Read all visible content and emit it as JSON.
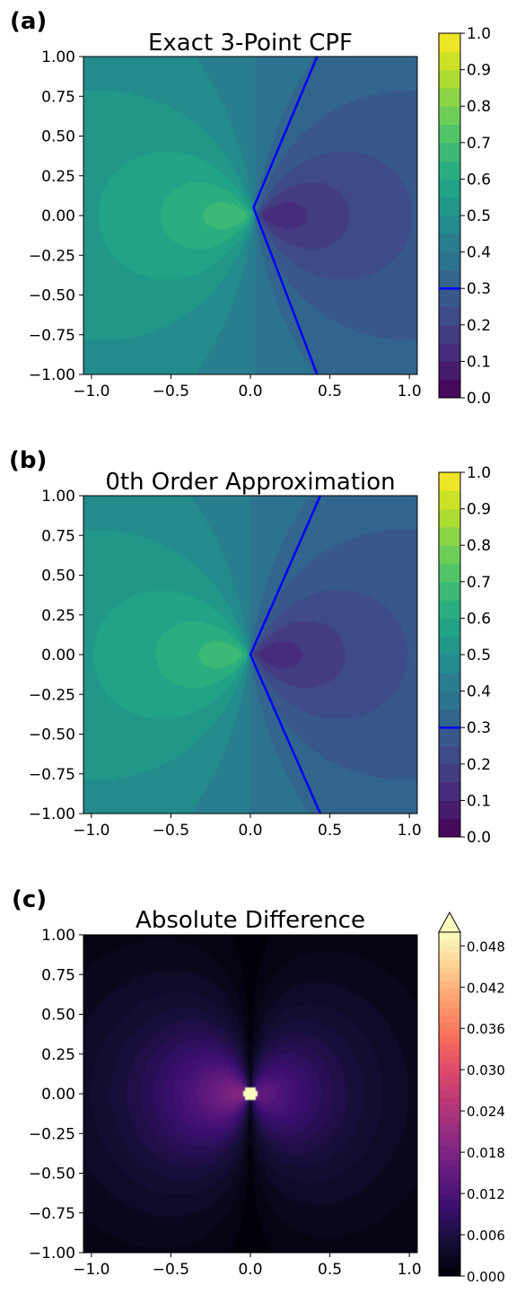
{
  "chart_data": [
    {
      "type": "heatmap",
      "subtype": "filled-contour",
      "panel_label": "(a)",
      "title": "Exact 3-Point CPF",
      "xlim": [
        -1.05,
        1.05
      ],
      "ylim": [
        -1.0,
        1.0
      ],
      "x_ticks": [
        "−1.0",
        "−0.5",
        "0.0",
        "0.5",
        "1.0"
      ],
      "x_tick_values": [
        -1.0,
        -0.5,
        0.0,
        0.5,
        1.0
      ],
      "y_ticks": [
        "1.00",
        "0.75",
        "0.50",
        "0.25",
        "0.00",
        "−0.25",
        "−0.50",
        "−0.75",
        "−1.00"
      ],
      "y_tick_values": [
        1.0,
        0.75,
        0.5,
        0.25,
        0.0,
        -0.25,
        -0.5,
        -0.75,
        -1.0
      ],
      "colormap": "viridis",
      "colorbar_range": [
        0.0,
        1.0
      ],
      "colorbar_ticks": [
        "1.0",
        "0.9",
        "0.8",
        "0.7",
        "0.6",
        "0.5",
        "0.4",
        "0.3",
        "0.2",
        "0.1",
        "0.0"
      ],
      "colorbar_tick_values": [
        1.0,
        0.9,
        0.8,
        0.7,
        0.6,
        0.5,
        0.4,
        0.3,
        0.2,
        0.1,
        0.0
      ],
      "contour_line": {
        "level": 0.3,
        "color": "#0000ff",
        "points": [
          [
            0.42,
            1.0
          ],
          [
            0.02,
            0.05
          ],
          [
            0.42,
            -1.0
          ]
        ]
      },
      "field_center": 0.03
    },
    {
      "type": "heatmap",
      "subtype": "filled-contour",
      "panel_label": "(b)",
      "title": "0th Order Approximation",
      "xlim": [
        -1.05,
        1.05
      ],
      "ylim": [
        -1.0,
        1.0
      ],
      "x_ticks": [
        "−1.0",
        "−0.5",
        "0.0",
        "0.5",
        "1.0"
      ],
      "x_tick_values": [
        -1.0,
        -0.5,
        0.0,
        0.5,
        1.0
      ],
      "y_ticks": [
        "1.00",
        "0.75",
        "0.50",
        "0.25",
        "0.00",
        "−0.25",
        "−0.50",
        "−0.75",
        "−1.00"
      ],
      "y_tick_values": [
        1.0,
        0.75,
        0.5,
        0.25,
        0.0,
        -0.25,
        -0.5,
        -0.75,
        -1.0
      ],
      "colormap": "viridis",
      "colorbar_range": [
        0.0,
        1.0
      ],
      "colorbar_ticks": [
        "1.0",
        "0.9",
        "0.8",
        "0.7",
        "0.6",
        "0.5",
        "0.4",
        "0.3",
        "0.2",
        "0.1",
        "0.0"
      ],
      "colorbar_tick_values": [
        1.0,
        0.9,
        0.8,
        0.7,
        0.6,
        0.5,
        0.4,
        0.3,
        0.2,
        0.1,
        0.0
      ],
      "contour_line": {
        "level": 0.3,
        "color": "#0000ff",
        "points": [
          [
            0.44,
            1.0
          ],
          [
            0.0,
            0.0
          ],
          [
            0.44,
            -1.0
          ]
        ]
      },
      "field_center": 0.0
    },
    {
      "type": "heatmap",
      "subtype": "filled-contour",
      "panel_label": "(c)",
      "title": "Absolute Difference",
      "xlim": [
        -1.05,
        1.05
      ],
      "ylim": [
        -1.0,
        1.0
      ],
      "x_ticks": [
        "−1.0",
        "−0.5",
        "0.0",
        "0.5",
        "1.0"
      ],
      "x_tick_values": [
        -1.0,
        -0.5,
        0.0,
        0.5,
        1.0
      ],
      "y_ticks": [
        "1.00",
        "0.75",
        "0.50",
        "0.25",
        "0.00",
        "−0.25",
        "−0.50",
        "−0.75",
        "−1.00"
      ],
      "y_tick_values": [
        1.0,
        0.75,
        0.5,
        0.25,
        0.0,
        -0.25,
        -0.5,
        -0.75,
        -1.0
      ],
      "colormap": "magma",
      "colorbar_range": [
        0.0,
        0.05
      ],
      "colorbar_extend": "max",
      "colorbar_ticks": [
        "0.048",
        "0.042",
        "0.036",
        "0.030",
        "0.024",
        "0.018",
        "0.012",
        "0.006",
        "0.000"
      ],
      "colorbar_tick_values": [
        0.048,
        0.042,
        0.036,
        0.03,
        0.024,
        0.018,
        0.012,
        0.006,
        0.0
      ]
    }
  ]
}
